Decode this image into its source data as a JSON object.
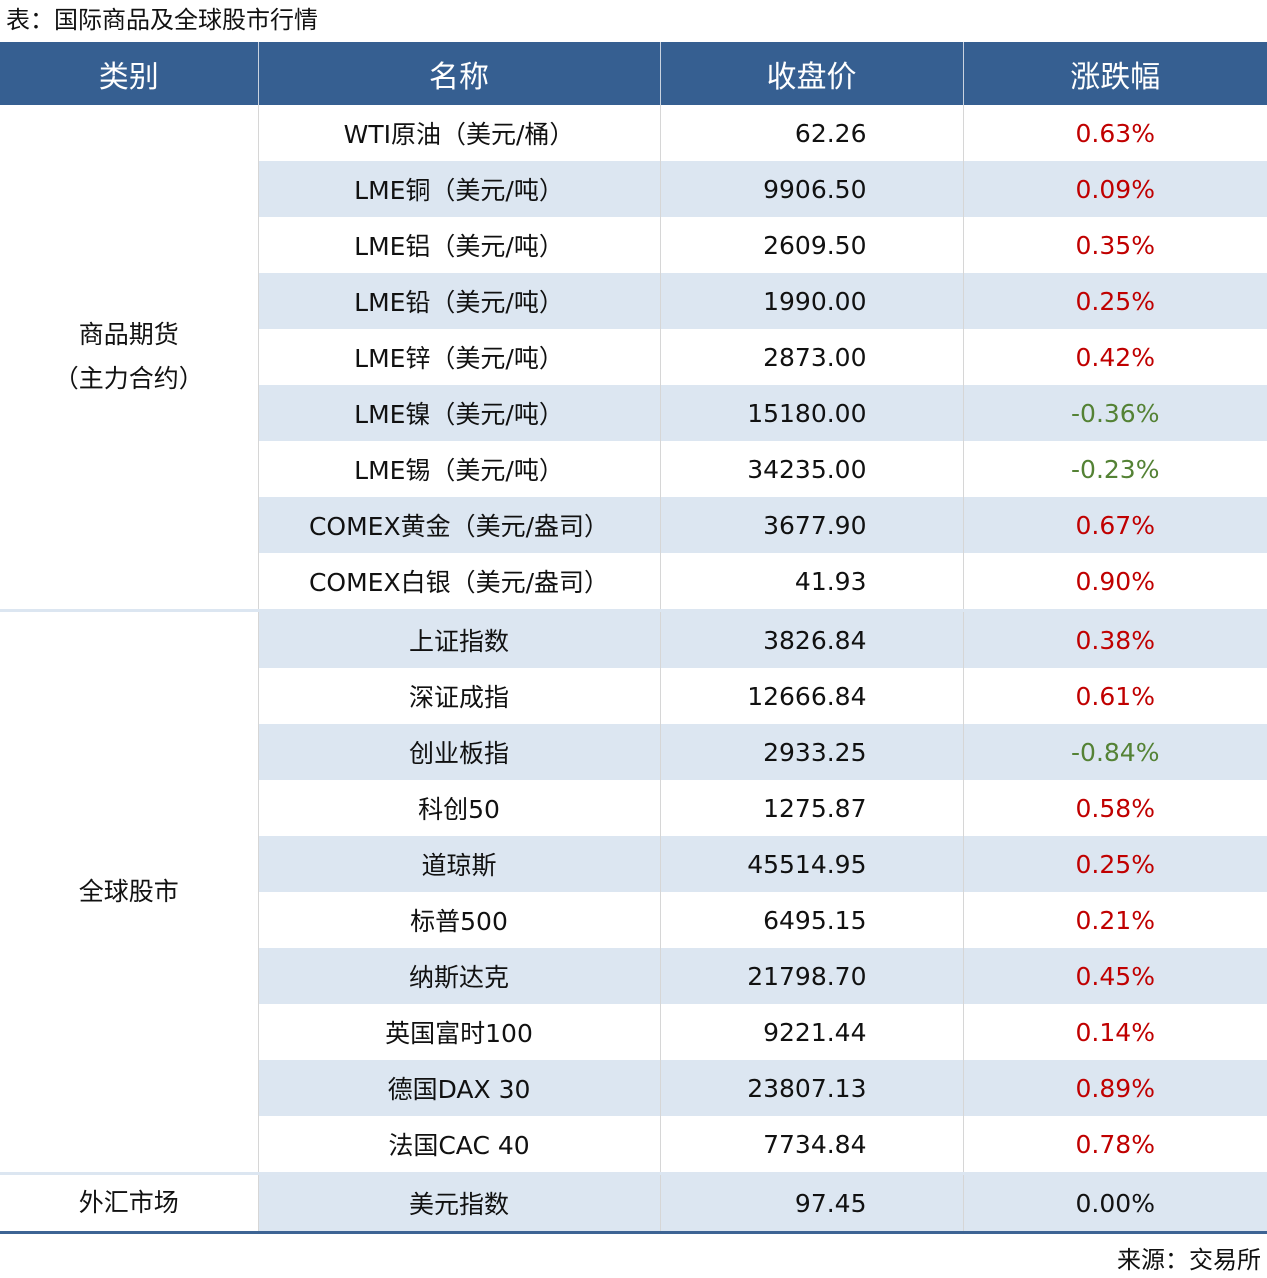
{
  "title": "表：国际商品及全球股市行情",
  "source": "来源：交易所",
  "headers": [
    "类别",
    "名称",
    "收盘价",
    "涨跌幅"
  ],
  "groups": [
    {
      "category_line1": "商品期货",
      "category_line2": "（主力合约）",
      "rows": [
        {
          "name": "WTI原油（美元/桶）",
          "price": "62.26",
          "change": "0.63%"
        },
        {
          "name": "LME铜（美元/吨）",
          "price": "9906.50",
          "change": "0.09%"
        },
        {
          "name": "LME铝（美元/吨）",
          "price": "2609.50",
          "change": "0.35%"
        },
        {
          "name": "LME铅（美元/吨）",
          "price": "1990.00",
          "change": "0.25%"
        },
        {
          "name": "LME锌（美元/吨）",
          "price": "2873.00",
          "change": "0.42%"
        },
        {
          "name": "LME镍（美元/吨）",
          "price": "15180.00",
          "change": "-0.36%"
        },
        {
          "name": "LME锡（美元/吨）",
          "price": "34235.00",
          "change": "-0.23%"
        },
        {
          "name": "COMEX黄金（美元/盎司）",
          "price": "3677.90",
          "change": "0.67%"
        },
        {
          "name": "COMEX白银（美元/盎司）",
          "price": "41.93",
          "change": "0.90%"
        }
      ]
    },
    {
      "category_line1": "全球股市",
      "rows": [
        {
          "name": "上证指数",
          "price": "3826.84",
          "change": "0.38%"
        },
        {
          "name": "深证成指",
          "price": "12666.84",
          "change": "0.61%"
        },
        {
          "name": "创业板指",
          "price": "2933.25",
          "change": "-0.84%"
        },
        {
          "name": "科创50",
          "price": "1275.87",
          "change": "0.58%"
        },
        {
          "name": "道琼斯",
          "price": "45514.95",
          "change": "0.25%"
        },
        {
          "name": "标普500",
          "price": "6495.15",
          "change": "0.21%"
        },
        {
          "name": "纳斯达克",
          "price": "21798.70",
          "change": "0.45%"
        },
        {
          "name": "英国富时100",
          "price": "9221.44",
          "change": "0.14%"
        },
        {
          "name": "德国DAX 30",
          "price": "23807.13",
          "change": "0.89%"
        },
        {
          "name": "法国CAC 40",
          "price": "7734.84",
          "change": "0.78%"
        }
      ]
    },
    {
      "category_line1": "外汇市场",
      "rows": [
        {
          "name": "美元指数",
          "price": "97.45",
          "change": "0.00%"
        }
      ]
    }
  ],
  "colors": {
    "header": "#365f91",
    "stripe": "#dce6f1",
    "up": "#c00000",
    "down": "#548235"
  }
}
